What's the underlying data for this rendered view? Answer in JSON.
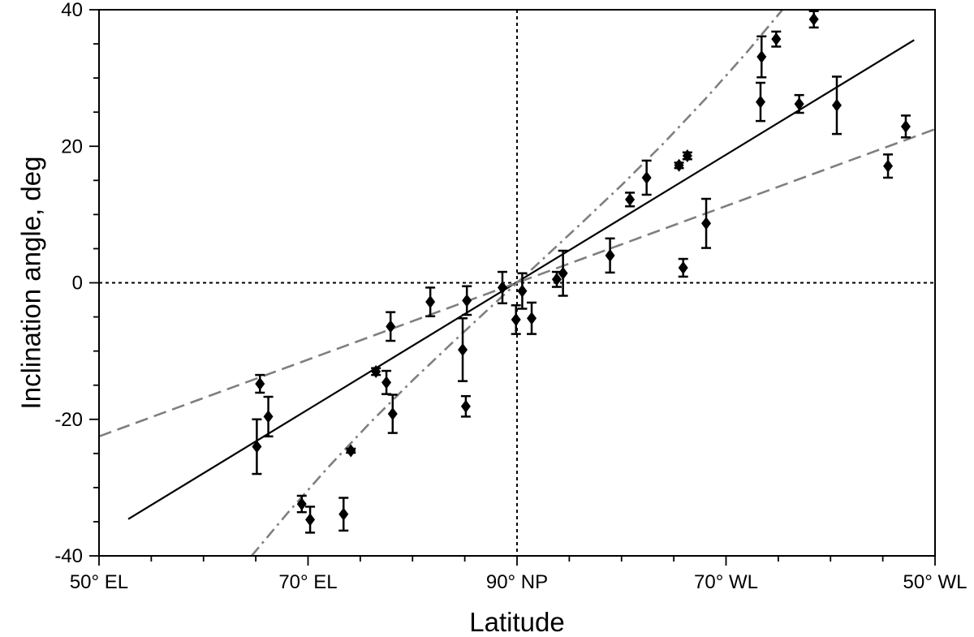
{
  "chart_data": {
    "type": "scatter",
    "title": "",
    "xlabel": "Latitude",
    "ylabel": "Inclination angle, deg",
    "xlim": [
      -40,
      40
    ],
    "ylim": [
      -40,
      40
    ],
    "x_ticks": [
      {
        "value": -40,
        "label": "50° EL"
      },
      {
        "value": -20,
        "label": "70° EL"
      },
      {
        "value": 0,
        "label": "90° NP"
      },
      {
        "value": 20,
        "label": "70° WL"
      },
      {
        "value": 40,
        "label": "50° WL"
      }
    ],
    "y_ticks": [
      {
        "value": -40,
        "label": "-40"
      },
      {
        "value": -20,
        "label": "-20"
      },
      {
        "value": 0,
        "label": "0"
      },
      {
        "value": 20,
        "label": "20"
      },
      {
        "value": 40,
        "label": "40"
      }
    ],
    "grid": false,
    "reference_lines": [
      {
        "name": "zero-inclination",
        "orientation": "horizontal",
        "value": 0,
        "style": "dotted"
      },
      {
        "name": "north-pole",
        "orientation": "vertical",
        "value": 0,
        "style": "dotted"
      }
    ],
    "series": [
      {
        "name": "observations",
        "marker": "diamond",
        "color": "#000000",
        "points": [
          {
            "x": -24.9,
            "y": -24.0,
            "err": 4.0
          },
          {
            "x": -24.6,
            "y": -14.8,
            "err": 1.3
          },
          {
            "x": -23.8,
            "y": -19.6,
            "err": 2.9
          },
          {
            "x": -20.6,
            "y": -32.4,
            "err": 1.2
          },
          {
            "x": -19.8,
            "y": -34.7,
            "err": 1.9
          },
          {
            "x": -16.6,
            "y": -33.9,
            "err": 2.4
          },
          {
            "x": -15.9,
            "y": -24.6,
            "err": 0.3
          },
          {
            "x": -13.5,
            "y": -13.0,
            "err": 0.5
          },
          {
            "x": -12.5,
            "y": -14.6,
            "err": 1.7
          },
          {
            "x": -12.1,
            "y": -6.4,
            "err": 2.1
          },
          {
            "x": -11.9,
            "y": -19.2,
            "err": 2.8
          },
          {
            "x": -8.3,
            "y": -2.8,
            "err": 2.1
          },
          {
            "x": -5.2,
            "y": -9.8,
            "err": 4.6
          },
          {
            "x": -4.9,
            "y": -18.1,
            "err": 1.5
          },
          {
            "x": -4.8,
            "y": -2.6,
            "err": 2.1
          },
          {
            "x": -1.4,
            "y": -0.7,
            "err": 2.3
          },
          {
            "x": -0.1,
            "y": -5.4,
            "err": 2.1
          },
          {
            "x": 0.5,
            "y": -1.2,
            "err": 2.6
          },
          {
            "x": 1.4,
            "y": -5.2,
            "err": 2.3
          },
          {
            "x": 3.8,
            "y": 0.5,
            "err": 1.1
          },
          {
            "x": 4.4,
            "y": 1.4,
            "err": 3.3
          },
          {
            "x": 8.9,
            "y": 4.0,
            "err": 2.5
          },
          {
            "x": 10.8,
            "y": 12.2,
            "err": 1.0
          },
          {
            "x": 12.4,
            "y": 15.4,
            "err": 2.5
          },
          {
            "x": 15.5,
            "y": 17.2,
            "err": 0.4
          },
          {
            "x": 15.9,
            "y": 2.2,
            "err": 1.3
          },
          {
            "x": 16.3,
            "y": 18.6,
            "err": 0.5
          },
          {
            "x": 18.1,
            "y": 8.7,
            "err": 3.6
          },
          {
            "x": 23.3,
            "y": 26.5,
            "err": 2.8
          },
          {
            "x": 23.4,
            "y": 33.1,
            "err": 3.0
          },
          {
            "x": 24.8,
            "y": 35.7,
            "err": 1.1
          },
          {
            "x": 27.0,
            "y": 26.2,
            "err": 1.3
          },
          {
            "x": 28.4,
            "y": 38.6,
            "err": 1.2
          },
          {
            "x": 30.6,
            "y": 26.0,
            "err": 4.2
          },
          {
            "x": 35.5,
            "y": 17.1,
            "err": 1.7
          },
          {
            "x": 37.2,
            "y": 22.9,
            "err": 1.6
          }
        ]
      },
      {
        "name": "linear-fit",
        "style": "solid",
        "color": "#000000",
        "fit": {
          "kind": "linear",
          "slope": 0.9333,
          "intercept": 0.1
        },
        "x_range": [
          -37.2,
          38.0
        ]
      },
      {
        "name": "dashed-fit",
        "style": "dashed",
        "color": "#7f7f7f",
        "fit": {
          "kind": "linear",
          "slope": 0.5625,
          "intercept": 0.0
        },
        "x_range": [
          -40,
          40
        ]
      },
      {
        "name": "dash-dot-fit",
        "style": "dashdot",
        "color": "#7f7f7f",
        "fit": {
          "kind": "curve",
          "x": [
            -25.4,
            -22,
            -18,
            -14,
            -10,
            -6,
            -2,
            0,
            2,
            6,
            10,
            14,
            18,
            22,
            25.4
          ],
          "y": [
            -40.0,
            -33.8,
            -26.9,
            -20.4,
            -14.3,
            -8.5,
            -2.8,
            0.0,
            2.8,
            8.5,
            14.3,
            20.4,
            26.9,
            33.8,
            40.0
          ]
        },
        "x_range": [
          -25.4,
          25.4
        ]
      }
    ]
  }
}
